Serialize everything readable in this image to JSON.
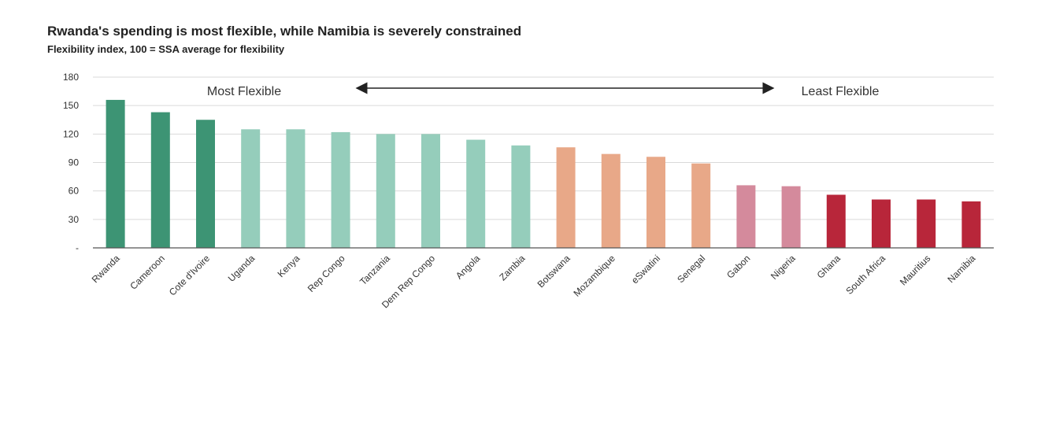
{
  "chart_data": {
    "type": "bar",
    "title": "Rwanda's spending is most flexible, while Namibia is severely constrained",
    "subtitle": "Flexibility index, 100 = SSA average for flexibility",
    "categories": [
      "Rwanda",
      "Cameroon",
      "Cote d'Ivoire",
      "Uganda",
      "Kenya",
      "Rep Congo",
      "Tanzania",
      "Dem Rep Congo",
      "Angola",
      "Zambia",
      "Botswana",
      "Mozambique",
      "eSwatini",
      "Senegal",
      "Gabon",
      "Nigeria",
      "Ghana",
      "South Africa",
      "Mauritius",
      "Namibia"
    ],
    "values": [
      156,
      143,
      135,
      125,
      125,
      122,
      120,
      120,
      114,
      108,
      106,
      99,
      96,
      89,
      66,
      65,
      56,
      51,
      51,
      49
    ],
    "bar_colors": [
      "#3d9474",
      "#3d9474",
      "#3d9474",
      "#95cdbb",
      "#95cdbb",
      "#95cdbb",
      "#95cdbb",
      "#95cdbb",
      "#95cdbb",
      "#95cdbb",
      "#e8a888",
      "#e8a888",
      "#e8a888",
      "#e8a888",
      "#d48a9c",
      "#d48a9c",
      "#b8263a",
      "#b8263a",
      "#b8263a",
      "#b8263a"
    ],
    "ylim": [
      0,
      180
    ],
    "yticks": [
      "-",
      "30",
      "60",
      "90",
      "120",
      "150",
      "180"
    ],
    "ytick_values": [
      0,
      30,
      60,
      90,
      120,
      150,
      180
    ],
    "grid": true,
    "annotations": {
      "left": "Most Flexible",
      "right": "Least Flexible",
      "arrow": "double-headed"
    },
    "xlabel": "",
    "ylabel": ""
  }
}
